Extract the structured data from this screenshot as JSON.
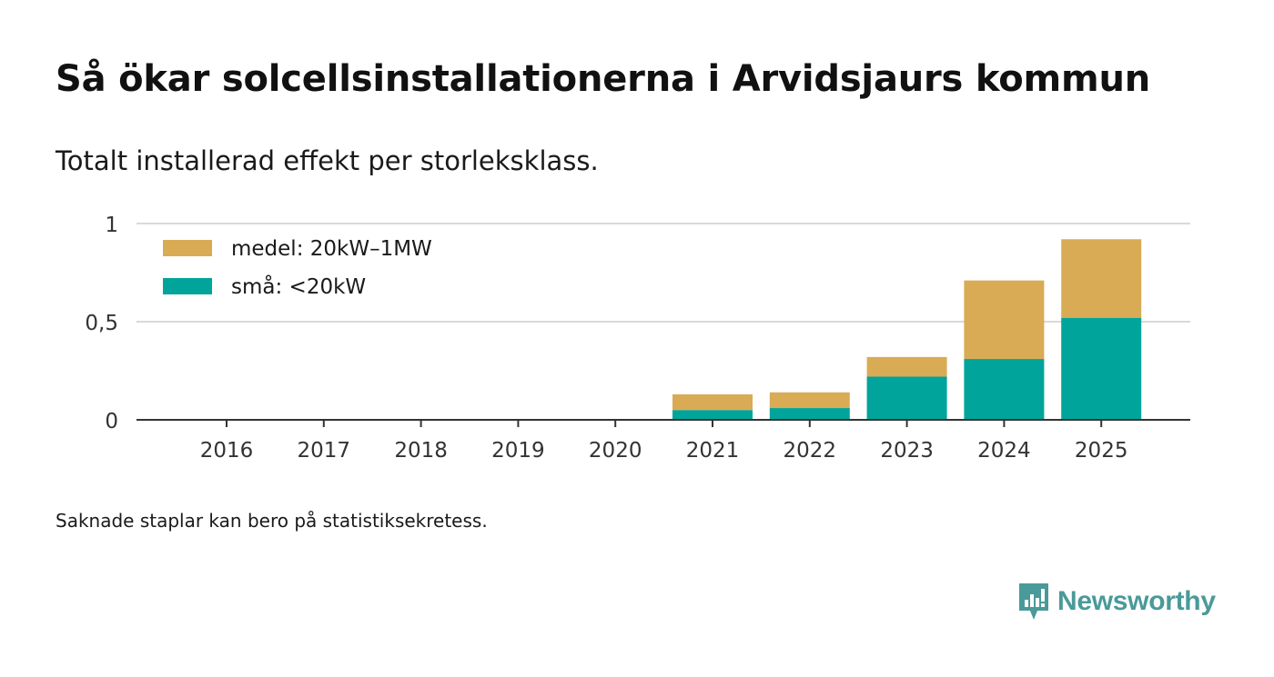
{
  "title": "Så ökar solcellsinstallationerna i Arvidsjaurs kommun",
  "subtitle": "Totalt installerad effekt per storleksklass.",
  "footnote": "Saknade staplar kan bero på statistiksekretess.",
  "brand": {
    "name": "Newsworthy",
    "icon": "newsworthy-logo-icon",
    "color": "#4a9a99"
  },
  "colors": {
    "medel": "#d9ab55",
    "sma": "#00a49b",
    "grid": "#d9d9d9",
    "axis": "#333333"
  },
  "chart_data": {
    "type": "bar",
    "stacked": true,
    "title": "Så ökar solcellsinstallationerna i Arvidsjaurs kommun",
    "subtitle": "Totalt installerad effekt per storleksklass.",
    "xlabel": "",
    "ylabel": "",
    "ylim": [
      0,
      1
    ],
    "yticks": [
      {
        "value": 0,
        "label": "0"
      },
      {
        "value": 0.5,
        "label": "0,5"
      },
      {
        "value": 1,
        "label": "1"
      }
    ],
    "grid": true,
    "legend_position": "top-left",
    "categories": [
      "2016",
      "2017",
      "2018",
      "2019",
      "2020",
      "2021",
      "2022",
      "2023",
      "2024",
      "2025"
    ],
    "series": [
      {
        "name": "små: <20kW",
        "key": "sma",
        "color": "#00a49b",
        "values": [
          0,
          0,
          0,
          0,
          0,
          0.05,
          0.06,
          0.22,
          0.31,
          0.52
        ]
      },
      {
        "name": "medel: 20kW–1MW",
        "key": "medel",
        "color": "#d9ab55",
        "values": [
          0,
          0,
          0,
          0,
          0,
          0.08,
          0.08,
          0.1,
          0.4,
          0.4
        ]
      }
    ],
    "legend": [
      {
        "label": "medel: 20kW–1MW",
        "color": "#d9ab55"
      },
      {
        "label": "små: <20kW",
        "color": "#00a49b"
      }
    ]
  }
}
